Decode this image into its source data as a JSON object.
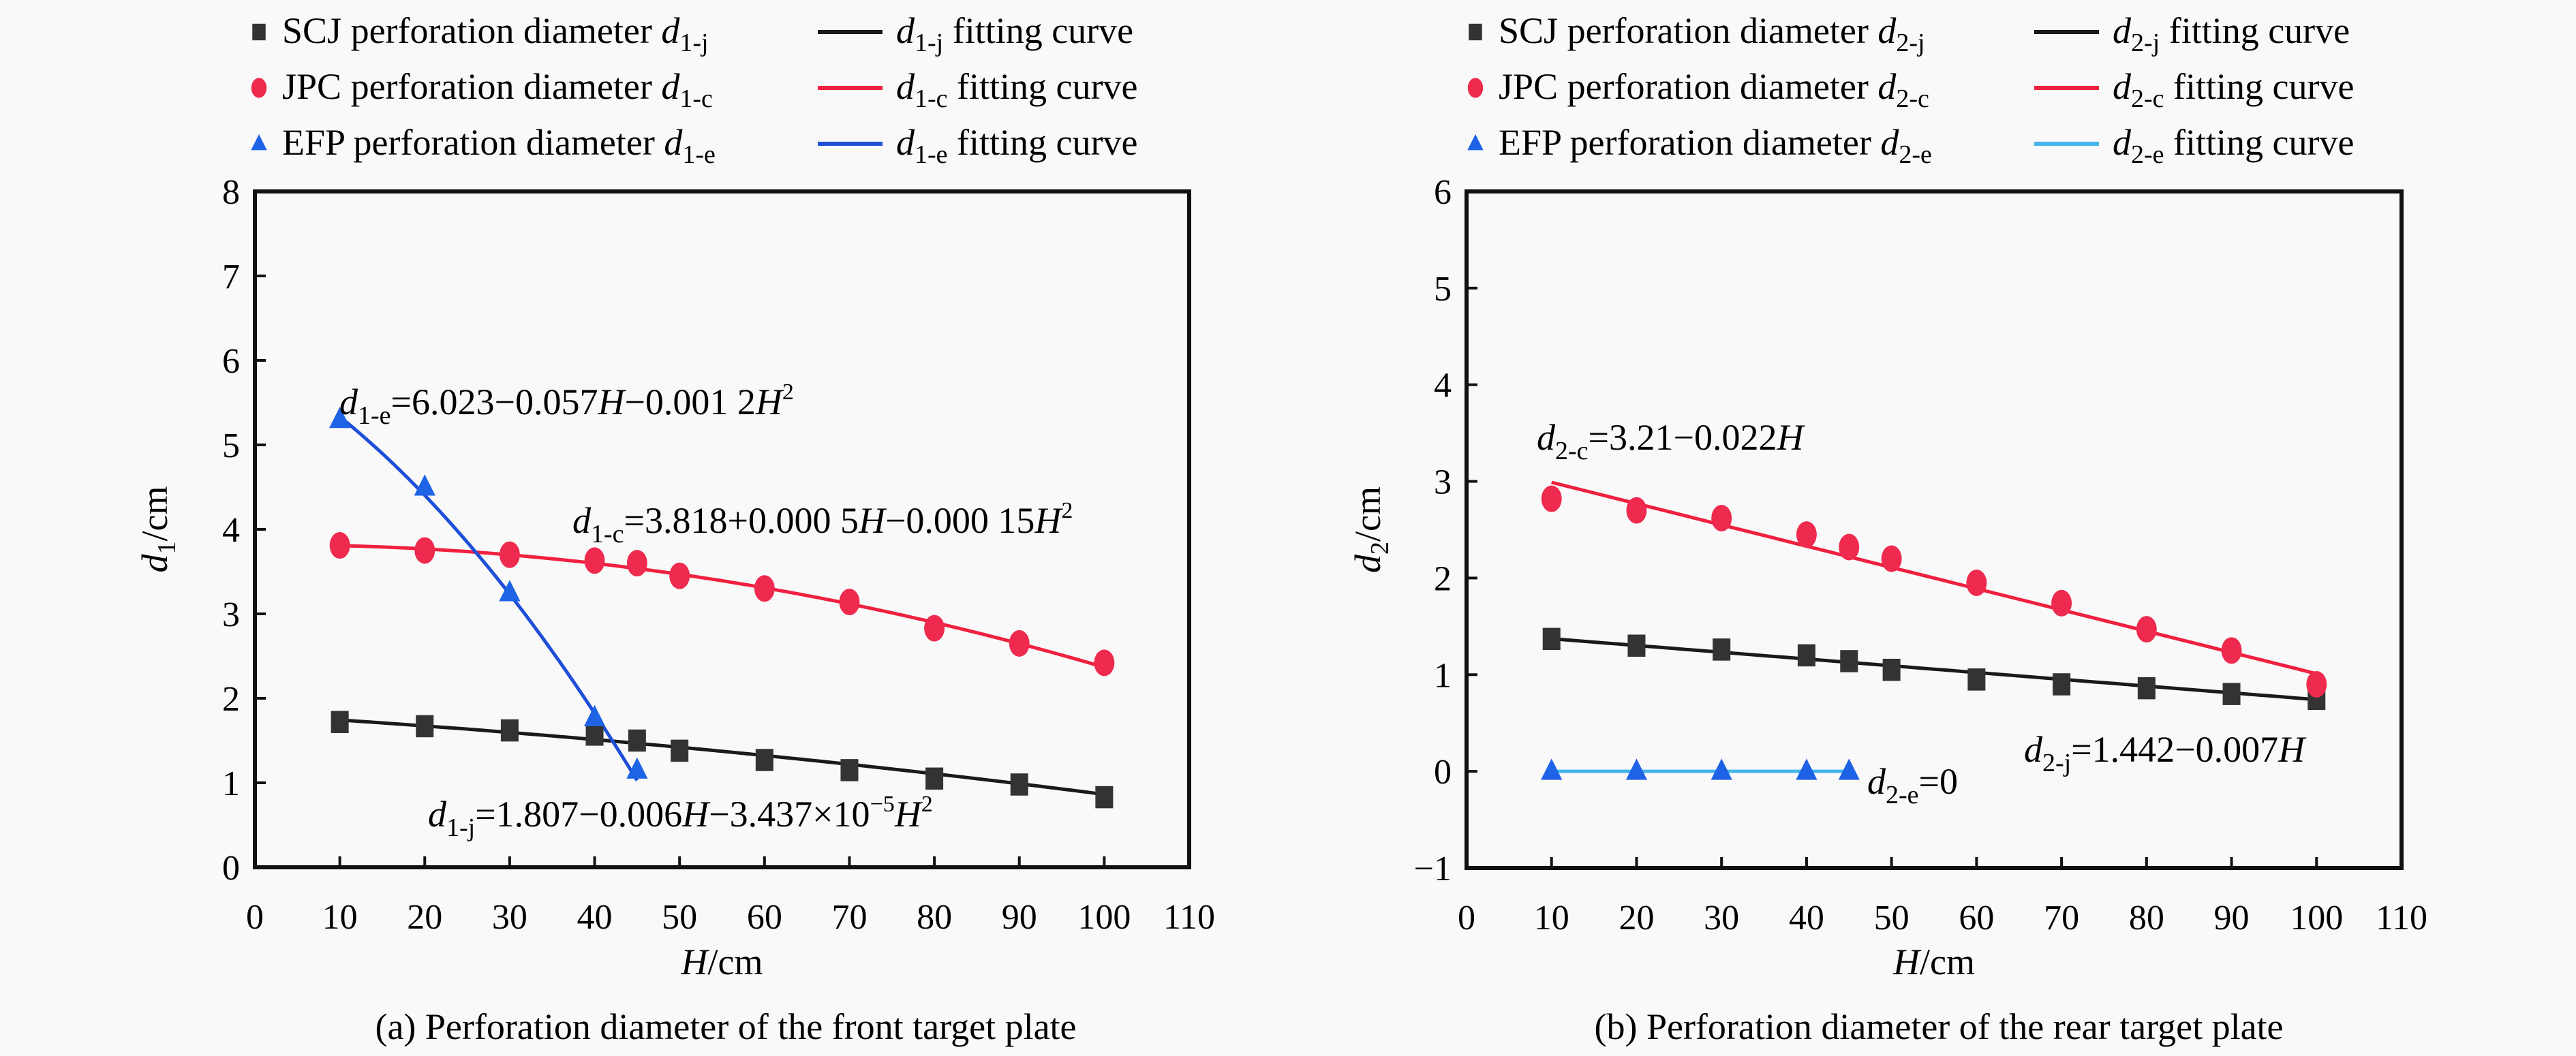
{
  "figure": {
    "captions": [
      "(a) Perforation diameter of the front target plate",
      "(b) Perforation diameter of the rear target plate"
    ]
  },
  "chart_data": [
    {
      "type": "scatter",
      "id": "front",
      "title": "(a) Perforation diameter of the front target plate",
      "xlabel": "H/cm",
      "xlabel_var": "H",
      "xlabel_unit": "/cm",
      "ylabel": "d1/cm",
      "ylabel_var": "d",
      "ylabel_sub": "1",
      "ylabel_unit": "/cm",
      "xlim": [
        0,
        110
      ],
      "ylim": [
        0,
        8
      ],
      "xticks": [
        0,
        10,
        20,
        30,
        40,
        50,
        60,
        70,
        80,
        90,
        100,
        110
      ],
      "yticks": [
        0,
        1,
        2,
        3,
        4,
        5,
        6,
        7,
        8
      ],
      "grid": false,
      "legend_position": "top",
      "series": [
        {
          "name": "SCJ perforation diameter d1-j",
          "legend_prefix": "SCJ perforation diameter ",
          "var": "d",
          "sub": "1-j",
          "fit_label": "fitting curve",
          "marker": "square",
          "color": "#333333",
          "line_color": "#1a1a1a",
          "x": [
            10,
            20,
            30,
            40,
            45,
            50,
            60,
            70,
            80,
            90,
            100
          ],
          "y": [
            1.72,
            1.67,
            1.62,
            1.57,
            1.5,
            1.38,
            1.27,
            1.15,
            1.05,
            0.98,
            0.83
          ],
          "fit": {
            "c0": 1.807,
            "c1": -0.006,
            "c2": -3.437e-05,
            "x_range": [
              10,
              100
            ]
          }
        },
        {
          "name": "JPC perforation diameter d1-c",
          "legend_prefix": "JPC perforation diameter ",
          "var": "d",
          "sub": "1-c",
          "fit_label": "fitting curve",
          "marker": "circle",
          "color": "#ee2a4e",
          "line_color": "#f0203f",
          "x": [
            10,
            20,
            30,
            40,
            45,
            50,
            60,
            70,
            80,
            90,
            100
          ],
          "y": [
            3.81,
            3.75,
            3.7,
            3.63,
            3.6,
            3.45,
            3.3,
            3.14,
            2.83,
            2.65,
            2.42
          ],
          "fit": {
            "c0": 3.818,
            "c1": 0.0005,
            "c2": -0.00015,
            "x_range": [
              10,
              100
            ]
          }
        },
        {
          "name": "EFP perforation diameter d1-e",
          "legend_prefix": "EFP perforation diameter ",
          "var": "d",
          "sub": "1-e",
          "fit_label": "fitting curve",
          "marker": "triangle",
          "color": "#1e63e6",
          "line_color": "#1f4fd8",
          "x": [
            10,
            20,
            30,
            40,
            45
          ],
          "y": [
            5.3,
            4.5,
            3.25,
            1.77,
            1.15
          ],
          "fit": {
            "c0": 6.023,
            "c1": -0.057,
            "c2": -0.0012,
            "x_range": [
              10,
              45
            ]
          }
        }
      ],
      "annotations": [
        {
          "id": "eq-e",
          "var": "d",
          "sub": "1-e",
          "text": "=6.023−0.057",
          "parts": [
            "=6.023−0.057",
            "H",
            "−0.001 2",
            "H",
            "2"
          ]
        },
        {
          "id": "eq-c",
          "var": "d",
          "sub": "1-c",
          "parts": [
            "=3.818+0.000 5",
            "H",
            "−0.000 15",
            "H",
            "2"
          ]
        },
        {
          "id": "eq-j",
          "var": "d",
          "sub": "1-j",
          "parts": [
            "=1.807−0.006",
            "H",
            "−3.437×10",
            "−5",
            "H",
            "2"
          ]
        }
      ]
    },
    {
      "type": "scatter",
      "id": "rear",
      "title": "(b) Perforation diameter of the rear target plate",
      "xlabel": "H/cm",
      "xlabel_var": "H",
      "xlabel_unit": "/cm",
      "ylabel": "d2/cm",
      "ylabel_var": "d",
      "ylabel_sub": "2",
      "ylabel_unit": "/cm",
      "xlim": [
        0,
        110
      ],
      "ylim": [
        -1,
        6
      ],
      "xticks": [
        0,
        10,
        20,
        30,
        40,
        50,
        60,
        70,
        80,
        90,
        100,
        110
      ],
      "yticks": [
        -1,
        0,
        1,
        2,
        3,
        4,
        5,
        6
      ],
      "grid": false,
      "legend_position": "top",
      "series": [
        {
          "name": "SCJ perforation diameter d2-j",
          "legend_prefix": "SCJ perforation diameter ",
          "var": "d",
          "sub": "2-j",
          "fit_label": "fitting curve",
          "marker": "square",
          "color": "#333333",
          "line_color": "#1a1a1a",
          "x": [
            10,
            20,
            30,
            40,
            45,
            50,
            60,
            70,
            80,
            90,
            100
          ],
          "y": [
            1.37,
            1.3,
            1.26,
            1.2,
            1.14,
            1.05,
            0.95,
            0.9,
            0.86,
            0.8,
            0.75
          ],
          "fit": {
            "c0": 1.442,
            "c1": -0.007,
            "c2": 0,
            "x_range": [
              10,
              100
            ]
          }
        },
        {
          "name": "JPC perforation diameter d2-c",
          "legend_prefix": "JPC perforation diameter ",
          "var": "d",
          "sub": "2-c",
          "fit_label": "fitting curve",
          "marker": "circle",
          "color": "#ee2a4e",
          "line_color": "#f0203f",
          "x": [
            10,
            20,
            30,
            40,
            45,
            50,
            60,
            70,
            80,
            90,
            100
          ],
          "y": [
            2.82,
            2.7,
            2.62,
            2.45,
            2.32,
            2.2,
            1.95,
            1.74,
            1.47,
            1.25,
            0.9
          ],
          "fit": {
            "c0": 3.21,
            "c1": -0.022,
            "c2": 0,
            "x_range": [
              10,
              100
            ]
          }
        },
        {
          "name": "EFP perforation diameter d2-e",
          "legend_prefix": "EFP perforation diameter ",
          "var": "d",
          "sub": "2-e",
          "fit_label": "fitting curve",
          "marker": "triangle",
          "color": "#1e63e6",
          "line_color": "#45b4ea",
          "x": [
            10,
            20,
            30,
            40,
            45
          ],
          "y": [
            0,
            0,
            0,
            0,
            0
          ],
          "fit": {
            "c0": 0,
            "c1": 0,
            "c2": 0,
            "x_range": [
              10,
              45
            ]
          }
        }
      ],
      "annotations": [
        {
          "id": "eq-c",
          "var": "d",
          "sub": "2-c",
          "parts": [
            "=3.21−0.022",
            "H"
          ]
        },
        {
          "id": "eq-j",
          "var": "d",
          "sub": "2-j",
          "parts": [
            "=1.442−0.007",
            "H"
          ]
        },
        {
          "id": "eq-e",
          "var": "d",
          "sub": "2-e",
          "parts": [
            "=0"
          ]
        }
      ]
    }
  ]
}
